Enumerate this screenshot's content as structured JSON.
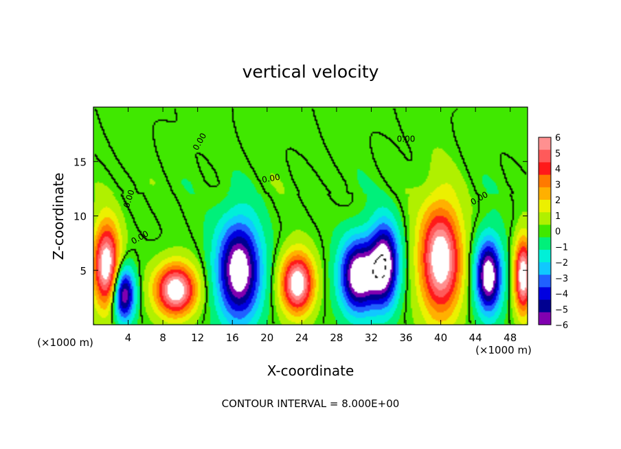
{
  "chart_data": {
    "type": "heatmap",
    "title": "vertical velocity",
    "xlabel": "X-coordinate",
    "ylabel": "Z-coordinate",
    "x_unit_label": "(×1000 m)",
    "x_unit_label_secondary": "(×1000 m)",
    "xlim": [
      0,
      50
    ],
    "ylim": [
      0,
      20
    ],
    "x_ticks": [
      4,
      8,
      12,
      16,
      20,
      24,
      28,
      32,
      36,
      40,
      44,
      48
    ],
    "y_ticks": [
      5,
      10,
      15
    ],
    "footnote": "CONTOUR INTERVAL = 8.000E+00",
    "contour_label": "0.00",
    "grid": false,
    "colorbar": {
      "position": "right",
      "labels": [
        "6",
        "5",
        "4",
        "3",
        "2",
        "1",
        "0",
        "−1",
        "−2",
        "−3",
        "−4",
        "−5",
        "−6"
      ],
      "colors": [
        "#ff9090",
        "#ff5a5a",
        "#ff1a1a",
        "#ff7a00",
        "#ffb000",
        "#ecf000",
        "#b0f000",
        "#40e800",
        "#00f07a",
        "#00f0d8",
        "#10c8ff",
        "#2060ff",
        "#0000e0",
        "#000090",
        "#8000b0"
      ]
    },
    "features": [
      {
        "x": 1.5,
        "z": 5.5,
        "sign": "positive",
        "amp": 1.0,
        "rx": 1.8,
        "rz": 4.5
      },
      {
        "x": 9.5,
        "z": 3.2,
        "sign": "positive",
        "amp": 1.0,
        "rx": 2.8,
        "rz": 2.8
      },
      {
        "x": 23.5,
        "z": 3.8,
        "sign": "positive",
        "amp": 1.0,
        "rx": 2.2,
        "rz": 3.2
      },
      {
        "x": 40.0,
        "z": 6.0,
        "sign": "positive",
        "amp": 1.0,
        "rx": 2.8,
        "rz": 6.0
      },
      {
        "x": 49.5,
        "z": 4.5,
        "sign": "positive",
        "amp": 1.0,
        "rx": 1.2,
        "rz": 4.0
      },
      {
        "x": 3.5,
        "z": 2.8,
        "sign": "negative",
        "amp": 0.9,
        "rx": 1.5,
        "rz": 3.0
      },
      {
        "x": 16.8,
        "z": 5.0,
        "sign": "negative",
        "amp": 1.0,
        "rx": 3.0,
        "rz": 5.5
      },
      {
        "x": 30.5,
        "z": 4.5,
        "sign": "negative",
        "amp": 1.0,
        "rx": 2.5,
        "rz": 4.0
      },
      {
        "x": 33.5,
        "z": 5.5,
        "sign": "negative",
        "amp": 1.0,
        "rx": 2.0,
        "rz": 4.5
      },
      {
        "x": 45.5,
        "z": 4.5,
        "sign": "negative",
        "amp": 1.0,
        "rx": 1.8,
        "rz": 4.0
      }
    ]
  }
}
